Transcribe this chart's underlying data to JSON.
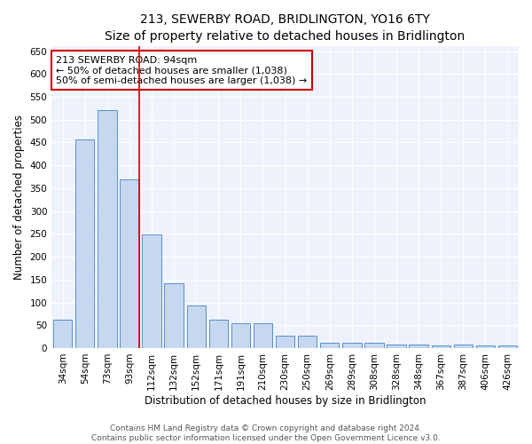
{
  "title": "213, SEWERBY ROAD, BRIDLINGTON, YO16 6TY",
  "subtitle": "Size of property relative to detached houses in Bridlington",
  "xlabel": "Distribution of detached houses by size in Bridlington",
  "ylabel": "Number of detached properties",
  "categories": [
    "34sqm",
    "54sqm",
    "73sqm",
    "93sqm",
    "112sqm",
    "132sqm",
    "152sqm",
    "171sqm",
    "191sqm",
    "210sqm",
    "230sqm",
    "250sqm",
    "269sqm",
    "289sqm",
    "308sqm",
    "328sqm",
    "348sqm",
    "367sqm",
    "387sqm",
    "406sqm",
    "426sqm"
  ],
  "values": [
    63,
    456,
    521,
    369,
    249,
    141,
    93,
    63,
    55,
    55,
    27,
    27,
    11,
    12,
    11,
    7,
    7,
    5,
    7,
    5,
    5
  ],
  "bar_color": "#c5d8f0",
  "bar_edge_color": "#5b8fcc",
  "highlight_line_color": "#cc0000",
  "annotation_text": "213 SEWERBY ROAD: 94sqm\n← 50% of detached houses are smaller (1,038)\n50% of semi-detached houses are larger (1,038) →",
  "annotation_box_facecolor": "#ffffff",
  "annotation_box_edgecolor": "#cc0000",
  "ylim": [
    0,
    660
  ],
  "yticks": [
    0,
    50,
    100,
    150,
    200,
    250,
    300,
    350,
    400,
    450,
    500,
    550,
    600,
    650
  ],
  "background_color": "#ffffff",
  "plot_background_color": "#eef2fc",
  "grid_color": "#ffffff",
  "title_fontsize": 10,
  "axis_label_fontsize": 8.5,
  "tick_fontsize": 7.5,
  "annotation_fontsize": 8,
  "footer_fontsize": 6.5,
  "footer_text": "Contains HM Land Registry data © Crown copyright and database right 2024.\nContains public sector information licensed under the Open Government Licence v3.0."
}
